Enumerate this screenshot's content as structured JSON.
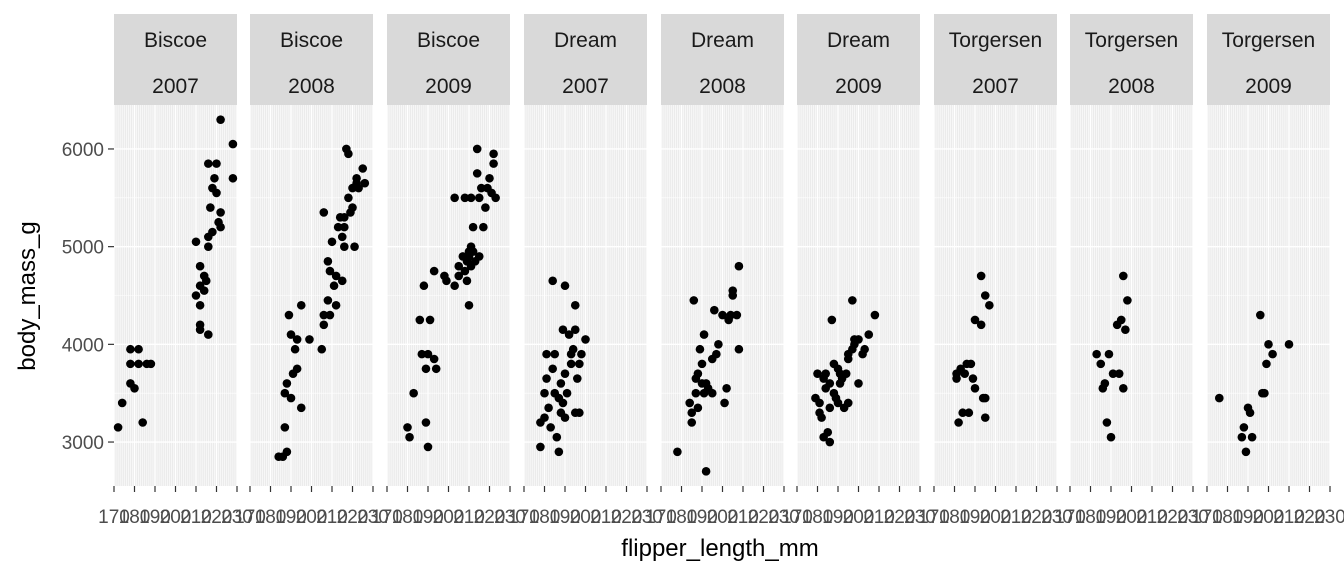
{
  "chart_data": {
    "type": "scatter",
    "xlabel": "flipper_length_mm",
    "ylabel": "body_mass_g",
    "xlim": [
      170,
      230
    ],
    "ylim": [
      2550,
      6450
    ],
    "x_ticks": [
      170,
      180,
      190,
      200,
      210,
      220,
      230
    ],
    "y_ticks": [
      3000,
      4000,
      5000,
      6000
    ],
    "facet_rows": [
      "Biscoe",
      "Dream",
      "Torgersen"
    ],
    "facet_cols": [
      "2007",
      "2008",
      "2009"
    ],
    "grid": true,
    "panels": [
      {
        "island": "Biscoe",
        "year": "2007",
        "points": [
          [
            172,
            3150
          ],
          [
            174,
            3400
          ],
          [
            178,
            3600
          ],
          [
            178,
            3800
          ],
          [
            178,
            3950
          ],
          [
            180,
            3550
          ],
          [
            182,
            3800
          ],
          [
            182,
            3950
          ],
          [
            184,
            3200
          ],
          [
            186,
            3800
          ],
          [
            188,
            3800
          ],
          [
            210,
            5050
          ],
          [
            210,
            4500
          ],
          [
            212,
            4800
          ],
          [
            212,
            4600
          ],
          [
            212,
            4400
          ],
          [
            212,
            4200
          ],
          [
            212,
            4150
          ],
          [
            214,
            4700
          ],
          [
            214,
            4550
          ],
          [
            215,
            4650
          ],
          [
            216,
            4100
          ],
          [
            216,
            5850
          ],
          [
            216,
            5000
          ],
          [
            216,
            5100
          ],
          [
            217,
            5400
          ],
          [
            218,
            5600
          ],
          [
            218,
            5150
          ],
          [
            219,
            5700
          ],
          [
            220,
            5850
          ],
          [
            220,
            5550
          ],
          [
            221,
            5250
          ],
          [
            222,
            5200
          ],
          [
            222,
            5350
          ],
          [
            222,
            6300
          ],
          [
            228,
            6050
          ],
          [
            228,
            5700
          ]
        ]
      },
      {
        "island": "Biscoe",
        "year": "2008",
        "points": [
          [
            184,
            2850
          ],
          [
            186,
            2850
          ],
          [
            187,
            3150
          ],
          [
            187,
            3500
          ],
          [
            188,
            3600
          ],
          [
            188,
            2900
          ],
          [
            190,
            3450
          ],
          [
            189,
            4300
          ],
          [
            190,
            4100
          ],
          [
            191,
            3700
          ],
          [
            192,
            3950
          ],
          [
            193,
            3750
          ],
          [
            193,
            4050
          ],
          [
            195,
            3350
          ],
          [
            195,
            4400
          ],
          [
            199,
            4050
          ],
          [
            205,
            3950
          ],
          [
            206,
            4300
          ],
          [
            206,
            4200
          ],
          [
            206,
            5350
          ],
          [
            208,
            4450
          ],
          [
            208,
            4850
          ],
          [
            209,
            4750
          ],
          [
            209,
            4300
          ],
          [
            210,
            5050
          ],
          [
            211,
            4600
          ],
          [
            212,
            4400
          ],
          [
            212,
            4700
          ],
          [
            213,
            5200
          ],
          [
            214,
            5300
          ],
          [
            215,
            5100
          ],
          [
            215,
            4650
          ],
          [
            216,
            5000
          ],
          [
            216,
            5300
          ],
          [
            216,
            5200
          ],
          [
            217,
            6000
          ],
          [
            218,
            5950
          ],
          [
            218,
            5500
          ],
          [
            219,
            5350
          ],
          [
            220,
            5400
          ],
          [
            220,
            5600
          ],
          [
            221,
            5000
          ],
          [
            222,
            5650
          ],
          [
            222,
            5700
          ],
          [
            223,
            5600
          ],
          [
            225,
            5800
          ],
          [
            226,
            5650
          ]
        ]
      },
      {
        "island": "Biscoe",
        "year": "2009",
        "points": [
          [
            180,
            3150
          ],
          [
            181,
            3050
          ],
          [
            183,
            3500
          ],
          [
            186,
            4250
          ],
          [
            187,
            3900
          ],
          [
            188,
            4600
          ],
          [
            189,
            3750
          ],
          [
            189,
            3200
          ],
          [
            190,
            2950
          ],
          [
            190,
            3900
          ],
          [
            191,
            4250
          ],
          [
            193,
            4750
          ],
          [
            193,
            3850
          ],
          [
            194,
            3750
          ],
          [
            198,
            4700
          ],
          [
            199,
            4650
          ],
          [
            203,
            5500
          ],
          [
            203,
            4600
          ],
          [
            205,
            4700
          ],
          [
            205,
            4800
          ],
          [
            207,
            4900
          ],
          [
            208,
            5500
          ],
          [
            208,
            4750
          ],
          [
            209,
            4650
          ],
          [
            209,
            4850
          ],
          [
            210,
            4950
          ],
          [
            210,
            4400
          ],
          [
            210,
            4900
          ],
          [
            211,
            5000
          ],
          [
            211,
            4800
          ],
          [
            211,
            5500
          ],
          [
            212,
            4950
          ],
          [
            212,
            5200
          ],
          [
            213,
            4850
          ],
          [
            214,
            6000
          ],
          [
            214,
            5750
          ],
          [
            215,
            4900
          ],
          [
            215,
            5500
          ],
          [
            216,
            5600
          ],
          [
            217,
            5200
          ],
          [
            218,
            5400
          ],
          [
            219,
            5600
          ],
          [
            220,
            5700
          ],
          [
            221,
            5550
          ],
          [
            222,
            5950
          ],
          [
            222,
            5850
          ],
          [
            223,
            5500
          ]
        ]
      },
      {
        "island": "Dream",
        "year": "2007",
        "points": [
          [
            178,
            2950
          ],
          [
            178,
            3200
          ],
          [
            180,
            3250
          ],
          [
            180,
            3500
          ],
          [
            181,
            3900
          ],
          [
            181,
            3650
          ],
          [
            182,
            3350
          ],
          [
            183,
            3150
          ],
          [
            184,
            4650
          ],
          [
            184,
            3750
          ],
          [
            185,
            3900
          ],
          [
            185,
            3500
          ],
          [
            186,
            3050
          ],
          [
            187,
            2900
          ],
          [
            187,
            3450
          ],
          [
            188,
            3600
          ],
          [
            188,
            3300
          ],
          [
            189,
            3400
          ],
          [
            189,
            4150
          ],
          [
            190,
            3250
          ],
          [
            190,
            4600
          ],
          [
            190,
            3700
          ],
          [
            191,
            3500
          ],
          [
            192,
            4100
          ],
          [
            193,
            3800
          ],
          [
            193,
            3900
          ],
          [
            194,
            3950
          ],
          [
            195,
            4400
          ],
          [
            195,
            4150
          ],
          [
            195,
            3300
          ],
          [
            196,
            3650
          ],
          [
            197,
            3800
          ],
          [
            197,
            3300
          ],
          [
            198,
            3900
          ],
          [
            200,
            4050
          ]
        ]
      },
      {
        "island": "Dream",
        "year": "2008",
        "points": [
          [
            178,
            2900
          ],
          [
            184,
            3400
          ],
          [
            185,
            3300
          ],
          [
            185,
            3200
          ],
          [
            186,
            4450
          ],
          [
            187,
            3650
          ],
          [
            187,
            3500
          ],
          [
            188,
            3700
          ],
          [
            188,
            3350
          ],
          [
            189,
            3950
          ],
          [
            190,
            3600
          ],
          [
            190,
            3800
          ],
          [
            191,
            3500
          ],
          [
            191,
            4100
          ],
          [
            192,
            2700
          ],
          [
            192,
            3600
          ],
          [
            193,
            3550
          ],
          [
            195,
            3850
          ],
          [
            195,
            3500
          ],
          [
            196,
            4350
          ],
          [
            197,
            3900
          ],
          [
            198,
            4000
          ],
          [
            200,
            4300
          ],
          [
            201,
            3400
          ],
          [
            202,
            3550
          ],
          [
            203,
            4250
          ],
          [
            204,
            4300
          ],
          [
            205,
            4500
          ],
          [
            205,
            4550
          ],
          [
            207,
            4300
          ],
          [
            208,
            3950
          ],
          [
            208,
            4800
          ]
        ]
      },
      {
        "island": "Dream",
        "year": "2009",
        "points": [
          [
            179,
            3450
          ],
          [
            180,
            3700
          ],
          [
            181,
            3400
          ],
          [
            181,
            3300
          ],
          [
            182,
            3250
          ],
          [
            183,
            3050
          ],
          [
            183,
            3650
          ],
          [
            184,
            3550
          ],
          [
            184,
            3700
          ],
          [
            185,
            3100
          ],
          [
            186,
            3000
          ],
          [
            186,
            3350
          ],
          [
            186,
            3600
          ],
          [
            187,
            4250
          ],
          [
            188,
            3500
          ],
          [
            188,
            3800
          ],
          [
            189,
            3450
          ],
          [
            190,
            3400
          ],
          [
            190,
            3750
          ],
          [
            191,
            3600
          ],
          [
            191,
            3700
          ],
          [
            192,
            3650
          ],
          [
            193,
            3350
          ],
          [
            194,
            3700
          ],
          [
            195,
            3850
          ],
          [
            195,
            3400
          ],
          [
            195,
            3900
          ],
          [
            197,
            3950
          ],
          [
            197,
            4450
          ],
          [
            198,
            4000
          ],
          [
            198,
            4050
          ],
          [
            200,
            3600
          ],
          [
            200,
            4050
          ],
          [
            202,
            3900
          ],
          [
            203,
            3950
          ],
          [
            205,
            4100
          ],
          [
            208,
            4300
          ]
        ]
      },
      {
        "island": "Torgersen",
        "year": "2007",
        "points": [
          [
            181,
            3700
          ],
          [
            181,
            3650
          ],
          [
            182,
            3200
          ],
          [
            183,
            3750
          ],
          [
            184,
            3300
          ],
          [
            185,
            3700
          ],
          [
            186,
            3800
          ],
          [
            187,
            3300
          ],
          [
            188,
            3800
          ],
          [
            189,
            3650
          ],
          [
            190,
            3550
          ],
          [
            190,
            4250
          ],
          [
            193,
            4200
          ],
          [
            193,
            4700
          ],
          [
            194,
            3450
          ],
          [
            195,
            3250
          ],
          [
            195,
            3450
          ],
          [
            195,
            4500
          ],
          [
            197,
            4400
          ]
        ]
      },
      {
        "island": "Torgersen",
        "year": "2008",
        "points": [
          [
            183,
            3900
          ],
          [
            185,
            3800
          ],
          [
            186,
            3550
          ],
          [
            187,
            3600
          ],
          [
            188,
            3200
          ],
          [
            189,
            3900
          ],
          [
            190,
            3050
          ],
          [
            191,
            3700
          ],
          [
            193,
            4200
          ],
          [
            194,
            3700
          ],
          [
            195,
            4250
          ],
          [
            196,
            3550
          ],
          [
            196,
            4700
          ],
          [
            197,
            4150
          ],
          [
            198,
            4450
          ]
        ]
      },
      {
        "island": "Torgersen",
        "year": "2009",
        "points": [
          [
            176,
            3450
          ],
          [
            187,
            3050
          ],
          [
            188,
            3150
          ],
          [
            189,
            2900
          ],
          [
            190,
            3350
          ],
          [
            191,
            3300
          ],
          [
            192,
            3050
          ],
          [
            196,
            4300
          ],
          [
            197,
            3500
          ],
          [
            198,
            3500
          ],
          [
            199,
            3800
          ],
          [
            200,
            4000
          ],
          [
            202,
            3900
          ],
          [
            210,
            4000
          ]
        ]
      }
    ]
  }
}
